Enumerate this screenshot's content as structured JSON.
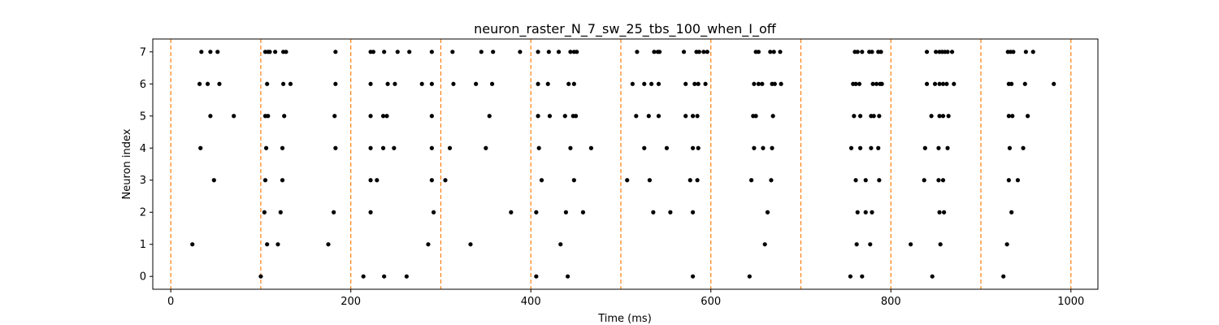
{
  "chart_data": {
    "type": "scatter",
    "title": "neuron_raster_N_7_sw_25_tbs_100_when_I_off",
    "xlabel": "Time (ms)",
    "ylabel": "Neuron index",
    "xlim": [
      -20,
      1030
    ],
    "ylim": [
      -0.4,
      7.4
    ],
    "xticks": [
      0,
      200,
      400,
      600,
      800,
      1000
    ],
    "yticks": [
      0,
      1,
      2,
      3,
      4,
      5,
      6,
      7
    ],
    "grid": false,
    "marker_color": "#000000",
    "vline_color": "#ff7f0e",
    "vlines": [
      0,
      100,
      200,
      300,
      400,
      500,
      600,
      700,
      800,
      900,
      1000
    ],
    "series": [
      {
        "neuron": 7,
        "times": [
          34,
          44,
          52,
          105,
          108,
          110,
          116,
          125,
          128,
          183,
          222,
          225,
          237,
          252,
          265,
          290,
          313,
          345,
          358,
          388,
          408,
          420,
          431,
          444,
          448,
          451,
          518,
          537,
          541,
          543,
          570,
          584,
          587,
          592,
          596,
          650,
          653,
          666,
          670,
          677,
          760,
          763,
          768,
          776,
          779,
          786,
          789,
          840,
          850,
          854,
          857,
          860,
          863,
          868,
          930,
          933,
          936,
          950,
          958
        ]
      },
      {
        "neuron": 6,
        "times": [
          32,
          41,
          54,
          107,
          125,
          133,
          183,
          222,
          241,
          249,
          279,
          290,
          314,
          339,
          357,
          408,
          419,
          442,
          448,
          513,
          526,
          534,
          542,
          572,
          582,
          586,
          594,
          648,
          653,
          657,
          668,
          671,
          678,
          758,
          761,
          765,
          780,
          784,
          788,
          790,
          840,
          849,
          854,
          858,
          862,
          870,
          931,
          934,
          949,
          981
        ]
      },
      {
        "neuron": 5,
        "times": [
          44,
          70,
          105,
          108,
          126,
          182,
          222,
          236,
          240,
          290,
          354,
          408,
          421,
          438,
          447,
          450,
          517,
          531,
          542,
          572,
          580,
          585,
          647,
          650,
          669,
          759,
          766,
          778,
          781,
          787,
          845,
          854,
          858,
          864,
          931,
          935,
          952
        ]
      },
      {
        "neuron": 4,
        "times": [
          33,
          106,
          124,
          183,
          222,
          236,
          248,
          290,
          310,
          350,
          409,
          444,
          467,
          526,
          551,
          580,
          586,
          648,
          658,
          668,
          756,
          766,
          778,
          786,
          838,
          853,
          863,
          932,
          947
        ]
      },
      {
        "neuron": 3,
        "times": [
          48,
          105,
          124,
          222,
          229,
          290,
          305,
          412,
          448,
          507,
          532,
          577,
          585,
          645,
          667,
          761,
          772,
          787,
          837,
          853,
          858,
          931,
          941
        ]
      },
      {
        "neuron": 2,
        "times": [
          104,
          122,
          181,
          222,
          292,
          378,
          406,
          439,
          458,
          536,
          555,
          580,
          663,
          763,
          772,
          779,
          854,
          859,
          934
        ]
      },
      {
        "neuron": 1,
        "times": [
          24,
          107,
          119,
          175,
          286,
          333,
          433,
          660,
          762,
          777,
          822,
          855,
          929
        ]
      },
      {
        "neuron": 0,
        "times": [
          100,
          214,
          237,
          262,
          406,
          441,
          580,
          643,
          755,
          768,
          846,
          925
        ]
      }
    ]
  }
}
